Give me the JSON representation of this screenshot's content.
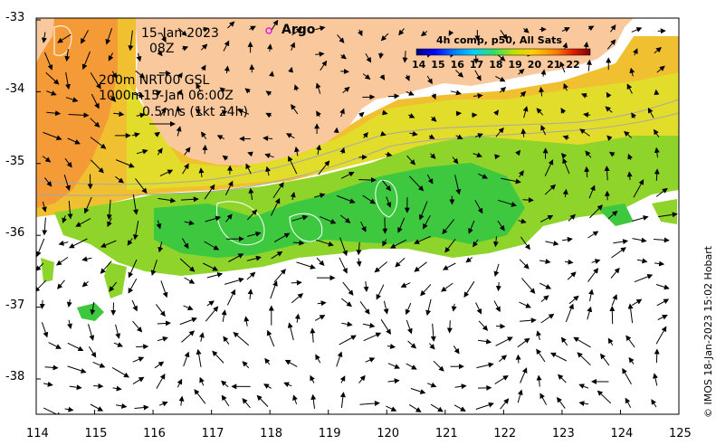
{
  "map": {
    "date_line": "15-Jan-2023",
    "hour_line": "08Z",
    "contour_line": "200m  NRT00 GSL",
    "contour_line2": "1000m15-Jan 06:00Z",
    "vector_scale_label": "0.5m/s (1kt 24h)",
    "argo_label": "Argo",
    "colorbar_title": "4h comp, p50, All Sats",
    "colorbar_ticks": [
      "14",
      "15",
      "16",
      "17",
      "18",
      "19",
      "20",
      "21",
      "22"
    ],
    "credit": "© IMOS 18-Jan-2023 15:02 Hobart",
    "lon_ticks": [
      "114",
      "115",
      "116",
      "117",
      "118",
      "119",
      "120",
      "121",
      "122",
      "123",
      "124",
      "125"
    ],
    "lat_ticks": [
      "-33",
      "-34",
      "-35",
      "-36",
      "-37",
      "-38"
    ],
    "colors": {
      "land": "#f9c89c",
      "argo_marker": "#e020e0",
      "colorbar": [
        "#00007f",
        "#0000ff",
        "#0080ff",
        "#00d0ff",
        "#30e060",
        "#c0e000",
        "#ffd000",
        "#ff8000",
        "#e02000",
        "#800000"
      ]
    }
  }
}
